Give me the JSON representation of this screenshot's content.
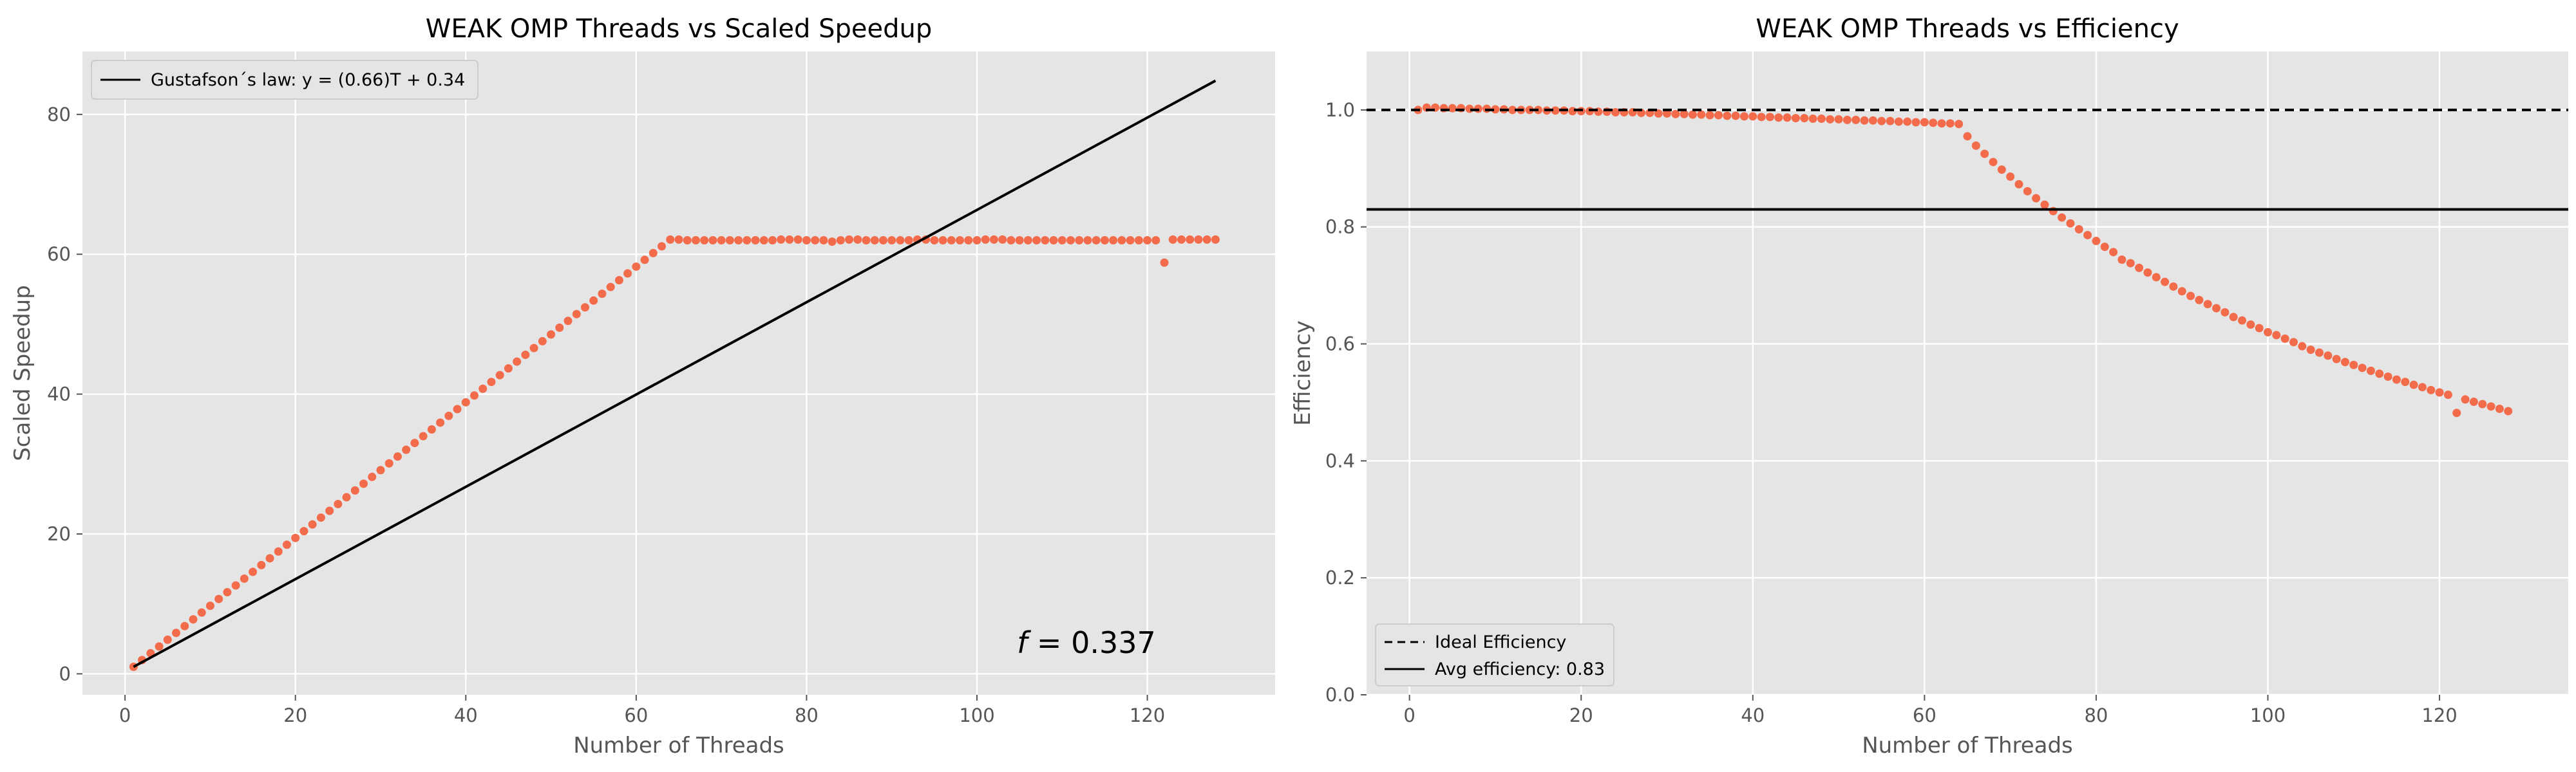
{
  "chart_data": [
    {
      "type": "scatter",
      "title": "WEAK OMP Threads vs Scaled Speedup",
      "xlabel": "Number of Threads",
      "ylabel": "Scaled Speedup",
      "xlim": [
        -5,
        135
      ],
      "ylim": [
        -3,
        89
      ],
      "xticks": [
        0,
        20,
        40,
        60,
        80,
        100,
        120
      ],
      "yticks": [
        0,
        20,
        40,
        60,
        80
      ],
      "grid": true,
      "legend_position": "top-left",
      "point_color": "#f26b4b",
      "series": [
        {
          "kind": "points",
          "x": [
            1,
            2,
            3,
            4,
            5,
            6,
            7,
            8,
            9,
            10,
            11,
            12,
            13,
            14,
            15,
            16,
            17,
            18,
            19,
            20,
            21,
            22,
            23,
            24,
            25,
            26,
            27,
            28,
            29,
            30,
            31,
            32,
            33,
            34,
            35,
            36,
            37,
            38,
            39,
            40,
            41,
            42,
            43,
            44,
            45,
            46,
            47,
            48,
            49,
            50,
            51,
            52,
            53,
            54,
            55,
            56,
            57,
            58,
            59,
            60,
            61,
            62,
            63,
            64,
            65,
            66,
            67,
            68,
            69,
            70,
            71,
            72,
            73,
            74,
            75,
            76,
            77,
            78,
            79,
            80,
            81,
            82,
            83,
            84,
            85,
            86,
            87,
            88,
            89,
            90,
            91,
            92,
            93,
            94,
            95,
            96,
            97,
            98,
            99,
            100,
            101,
            102,
            103,
            104,
            105,
            106,
            107,
            108,
            109,
            110,
            111,
            112,
            113,
            114,
            115,
            116,
            117,
            118,
            119,
            120,
            121,
            122,
            123,
            124,
            125,
            126,
            127,
            128
          ],
          "y": [
            1.0,
            1.97,
            2.94,
            3.91,
            4.88,
            5.85,
            6.82,
            7.79,
            8.76,
            9.73,
            10.7,
            11.67,
            12.64,
            13.61,
            14.58,
            15.55,
            16.52,
            17.49,
            18.46,
            19.43,
            20.4,
            21.37,
            22.34,
            23.31,
            24.28,
            25.25,
            26.22,
            27.19,
            28.16,
            29.13,
            30.1,
            31.07,
            32.04,
            33.01,
            33.98,
            34.95,
            35.92,
            36.89,
            37.86,
            38.83,
            39.8,
            40.77,
            41.74,
            42.71,
            43.68,
            44.65,
            45.62,
            46.59,
            47.56,
            48.53,
            49.5,
            50.47,
            51.44,
            52.41,
            53.38,
            54.35,
            55.32,
            56.29,
            57.26,
            58.23,
            59.2,
            60.17,
            61.14,
            62.1,
            62.1,
            62.0,
            62.0,
            62.0,
            62.0,
            62.0,
            62.0,
            62.0,
            62.0,
            62.0,
            62.0,
            62.0,
            62.1,
            62.1,
            62.1,
            62.0,
            62.0,
            62.0,
            61.8,
            62.0,
            62.1,
            62.1,
            62.0,
            62.0,
            62.0,
            62.0,
            62.0,
            62.0,
            62.1,
            62.1,
            62.0,
            62.0,
            62.0,
            62.0,
            62.0,
            62.0,
            62.1,
            62.1,
            62.1,
            62.0,
            62.0,
            62.0,
            62.0,
            62.0,
            62.0,
            62.0,
            62.0,
            62.0,
            62.0,
            62.0,
            62.0,
            62.0,
            62.0,
            62.0,
            62.0,
            62.0,
            62.0,
            58.8,
            62.1,
            62.1,
            62.1,
            62.1,
            62.1,
            62.1
          ]
        },
        {
          "kind": "line",
          "name": "Gustafson´s law: y = (0.66)T + 0.34",
          "color": "#000000",
          "dash": "solid",
          "x": [
            1,
            128
          ],
          "y": [
            1.0,
            84.82
          ]
        }
      ],
      "annotation": {
        "text": "f = 0.337",
        "x": 121,
        "y": 3
      }
    },
    {
      "type": "scatter",
      "title": "WEAK OMP Threads vs Efficiency",
      "xlabel": "Number of Threads",
      "ylabel": "Efficiency",
      "xlim": [
        -5,
        135
      ],
      "ylim": [
        0,
        1.1
      ],
      "xticks": [
        0,
        20,
        40,
        60,
        80,
        100,
        120
      ],
      "yticks": [
        0.0,
        0.2,
        0.4,
        0.6,
        0.8,
        1.0
      ],
      "grid": true,
      "legend_position": "bottom-left",
      "point_color": "#f26b4b",
      "series": [
        {
          "kind": "points",
          "x": [
            1,
            2,
            3,
            4,
            5,
            6,
            7,
            8,
            9,
            10,
            11,
            12,
            13,
            14,
            15,
            16,
            17,
            18,
            19,
            20,
            21,
            22,
            23,
            24,
            25,
            26,
            27,
            28,
            29,
            30,
            31,
            32,
            33,
            34,
            35,
            36,
            37,
            38,
            39,
            40,
            41,
            42,
            43,
            44,
            45,
            46,
            47,
            48,
            49,
            50,
            51,
            52,
            53,
            54,
            55,
            56,
            57,
            58,
            59,
            60,
            61,
            62,
            63,
            64,
            65,
            66,
            67,
            68,
            69,
            70,
            71,
            72,
            73,
            74,
            75,
            76,
            77,
            78,
            79,
            80,
            81,
            82,
            83,
            84,
            85,
            86,
            87,
            88,
            89,
            90,
            91,
            92,
            93,
            94,
            95,
            96,
            97,
            98,
            99,
            100,
            101,
            102,
            103,
            104,
            105,
            106,
            107,
            108,
            109,
            110,
            111,
            112,
            113,
            114,
            115,
            116,
            117,
            118,
            119,
            120,
            121,
            122,
            123,
            124,
            125,
            126,
            127,
            128
          ],
          "y": [
            1.0,
            1.004,
            1.004,
            1.003,
            1.003,
            1.003,
            1.002,
            1.002,
            1.002,
            1.001,
            1.001,
            1.0,
            1.0,
            1.0,
            1.0,
            0.999,
            0.999,
            0.999,
            0.998,
            0.998,
            0.998,
            0.997,
            0.997,
            0.996,
            0.996,
            0.996,
            0.995,
            0.995,
            0.994,
            0.994,
            0.993,
            0.993,
            0.992,
            0.992,
            0.991,
            0.991,
            0.99,
            0.99,
            0.989,
            0.989,
            0.988,
            0.988,
            0.987,
            0.987,
            0.986,
            0.986,
            0.985,
            0.985,
            0.984,
            0.984,
            0.983,
            0.983,
            0.982,
            0.982,
            0.981,
            0.981,
            0.98,
            0.98,
            0.979,
            0.979,
            0.978,
            0.977,
            0.977,
            0.976,
            0.955,
            0.939,
            0.925,
            0.911,
            0.898,
            0.886,
            0.873,
            0.861,
            0.849,
            0.838,
            0.827,
            0.816,
            0.806,
            0.796,
            0.786,
            0.776,
            0.766,
            0.757,
            0.744,
            0.738,
            0.73,
            0.722,
            0.714,
            0.706,
            0.698,
            0.69,
            0.682,
            0.675,
            0.668,
            0.661,
            0.654,
            0.646,
            0.64,
            0.633,
            0.627,
            0.62,
            0.615,
            0.609,
            0.603,
            0.596,
            0.59,
            0.585,
            0.58,
            0.574,
            0.569,
            0.564,
            0.559,
            0.554,
            0.549,
            0.544,
            0.539,
            0.535,
            0.53,
            0.526,
            0.521,
            0.517,
            0.513,
            0.482,
            0.505,
            0.501,
            0.497,
            0.493,
            0.489,
            0.485
          ]
        },
        {
          "kind": "line",
          "name": "Ideal Efficiency",
          "color": "#000000",
          "dash": "dashed",
          "y_const": 1.0
        },
        {
          "kind": "line",
          "name": "Avg efficiency: 0.83",
          "color": "#000000",
          "dash": "solid",
          "y_const": 0.83
        }
      ]
    }
  ]
}
